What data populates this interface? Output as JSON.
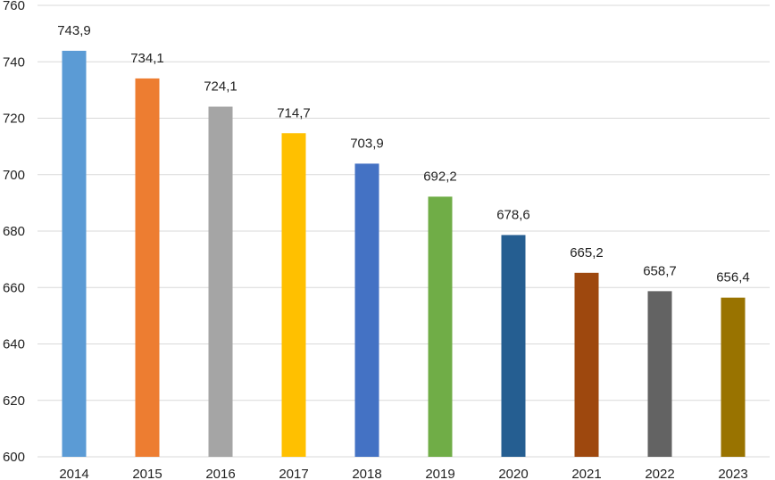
{
  "chart_data": {
    "type": "bar",
    "title": "",
    "xlabel": "",
    "ylabel": "",
    "ylim": [
      600,
      760
    ],
    "yticks": [
      600,
      620,
      640,
      660,
      680,
      700,
      720,
      740,
      760
    ],
    "grid": true,
    "categories": [
      "2014",
      "2015",
      "2016",
      "2017",
      "2018",
      "2019",
      "2020",
      "2021",
      "2022",
      "2023"
    ],
    "values": [
      743.9,
      734.1,
      724.1,
      714.7,
      703.9,
      692.2,
      678.6,
      665.2,
      658.7,
      656.4
    ],
    "data_labels": [
      "743,9",
      "734,1",
      "724,1",
      "714,7",
      "703,9",
      "692,2",
      "678,6",
      "665,2",
      "658,7",
      "656,4"
    ],
    "colors": [
      "#5b9bd5",
      "#ed7d31",
      "#a5a5a5",
      "#ffc000",
      "#4472c4",
      "#70ad47",
      "#255e91",
      "#9e480e",
      "#636363",
      "#997300"
    ]
  }
}
